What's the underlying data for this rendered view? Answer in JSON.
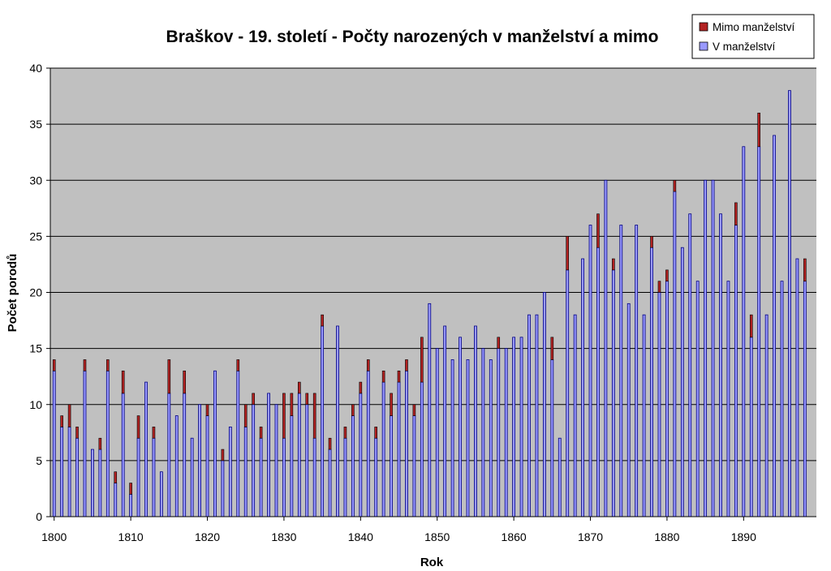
{
  "chart_data": {
    "type": "bar",
    "stacked": true,
    "title": "Braškov - 19. století - Počty narozených v manželství a mimo",
    "xlabel": "Rok",
    "ylabel": "Počet porodů",
    "ylim": [
      0,
      40
    ],
    "y_ticks": [
      "0",
      "5",
      "10",
      "15",
      "20",
      "25",
      "30",
      "35",
      "40"
    ],
    "x_ticks": [
      "1800",
      "1810",
      "1820",
      "1830",
      "1840",
      "1850",
      "1860",
      "1870",
      "1880",
      "1890"
    ],
    "grid": true,
    "legend_position": "top-right",
    "colors": {
      "plot_background": "#c0c0c0",
      "in_marriage": "#9999ff",
      "out_of_marriage": "#b22222",
      "bar_outline": "#000080",
      "gridline": "#000000"
    },
    "x": [
      1800,
      1801,
      1802,
      1803,
      1804,
      1805,
      1806,
      1807,
      1808,
      1809,
      1810,
      1811,
      1812,
      1813,
      1814,
      1815,
      1816,
      1817,
      1818,
      1819,
      1820,
      1821,
      1822,
      1823,
      1824,
      1825,
      1826,
      1827,
      1828,
      1829,
      1830,
      1831,
      1832,
      1833,
      1834,
      1835,
      1836,
      1837,
      1838,
      1839,
      1840,
      1841,
      1842,
      1843,
      1844,
      1845,
      1846,
      1847,
      1848,
      1849,
      1850,
      1851,
      1852,
      1853,
      1854,
      1855,
      1856,
      1857,
      1858,
      1859,
      1860,
      1861,
      1862,
      1863,
      1864,
      1865,
      1866,
      1867,
      1868,
      1869,
      1870,
      1871,
      1872,
      1873,
      1874,
      1875,
      1876,
      1877,
      1878,
      1879,
      1880,
      1881,
      1882,
      1883,
      1884,
      1885,
      1886,
      1887,
      1888,
      1889,
      1890,
      1891,
      1892,
      1893,
      1894,
      1895,
      1896,
      1897,
      1898,
      1899
    ],
    "series": [
      {
        "name": "V manželství",
        "values": [
          13,
          8,
          8,
          7,
          13,
          6,
          6,
          13,
          3,
          11,
          2,
          7,
          12,
          7,
          4,
          11,
          9,
          11,
          7,
          10,
          9,
          13,
          5,
          8,
          13,
          8,
          10,
          7,
          11,
          10,
          7,
          9,
          11,
          10,
          7,
          17,
          6,
          17,
          7,
          9,
          11,
          13,
          7,
          12,
          9,
          12,
          13,
          9,
          12,
          19,
          15,
          17,
          14,
          16,
          14,
          17,
          15,
          14,
          15,
          15,
          16,
          16,
          18,
          18,
          20,
          14,
          7,
          22,
          18,
          23,
          26,
          24,
          30,
          22,
          26,
          19,
          26,
          18,
          24,
          20,
          21,
          29,
          24,
          27,
          21,
          30,
          30,
          27,
          21,
          26,
          33,
          16,
          33,
          18,
          34,
          21,
          38,
          23,
          21,
          0
        ]
      },
      {
        "name": "Mimo manželství",
        "values": [
          1,
          1,
          2,
          1,
          1,
          0,
          1,
          1,
          1,
          2,
          1,
          2,
          0,
          1,
          0,
          3,
          0,
          2,
          0,
          0,
          1,
          0,
          1,
          0,
          1,
          2,
          1,
          1,
          0,
          0,
          4,
          2,
          1,
          1,
          4,
          1,
          1,
          0,
          1,
          1,
          1,
          1,
          1,
          1,
          2,
          1,
          1,
          1,
          4,
          0,
          0,
          0,
          0,
          0,
          0,
          0,
          0,
          0,
          1,
          0,
          0,
          0,
          0,
          0,
          0,
          2,
          0,
          3,
          0,
          0,
          0,
          3,
          0,
          1,
          0,
          0,
          0,
          0,
          1,
          1,
          1,
          1,
          0,
          0,
          0,
          0,
          0,
          0,
          0,
          2,
          0,
          2,
          3,
          0,
          0,
          0,
          0,
          0,
          2,
          0
        ]
      }
    ]
  }
}
